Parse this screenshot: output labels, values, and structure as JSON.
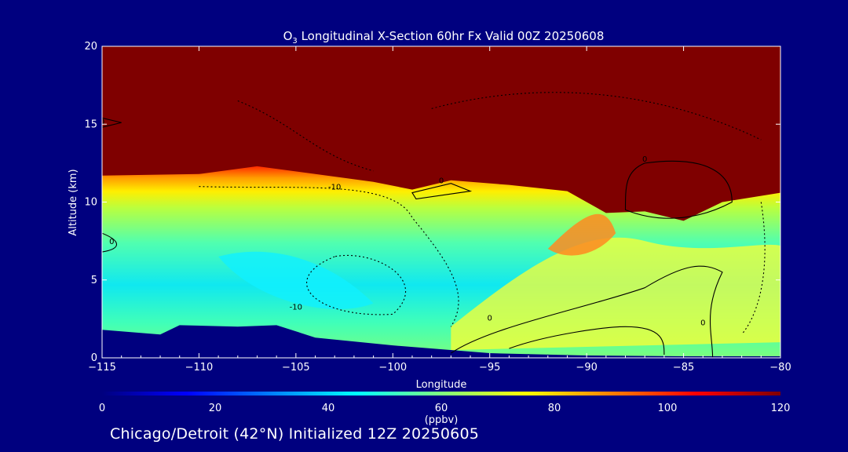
{
  "chart_data": {
    "type": "heatmap",
    "title_prefix": "O",
    "title_sub": "3",
    "title_rest": " Longitudinal X-Section 60hr  Fx Valid 00Z 20250608",
    "xlabel": "Longitude",
    "ylabel": "Altitude (km)",
    "xlim": [
      -115,
      -80
    ],
    "ylim": [
      0,
      20
    ],
    "x_ticks": [
      -115,
      -110,
      -105,
      -100,
      -95,
      -90,
      -85,
      -80
    ],
    "x_tick_labels": [
      "−115",
      "−110",
      "−105",
      "−100",
      "−95",
      "−90",
      "−85",
      "−80"
    ],
    "y_ticks": [
      0,
      5,
      10,
      15,
      20
    ],
    "y_tick_labels": [
      "0",
      "5",
      "10",
      "15",
      "20"
    ],
    "colorbar": {
      "min": 0,
      "max": 120,
      "ticks": [
        0,
        20,
        40,
        60,
        80,
        100,
        120
      ],
      "tick_labels": [
        "0",
        "20",
        "40",
        "60",
        "80",
        "100",
        "120"
      ],
      "unit": "(ppbv)",
      "colors": [
        "#00007f",
        "#0000ff",
        "#0080ff",
        "#00ffff",
        "#80ff80",
        "#ffff00",
        "#ff8000",
        "#ff0000",
        "#7f0000"
      ]
    },
    "terrain": [
      [
        -115,
        1.8
      ],
      [
        -112,
        1.5
      ],
      [
        -111,
        2.1
      ],
      [
        -108,
        2.0
      ],
      [
        -106,
        2.1
      ],
      [
        -104,
        1.3
      ],
      [
        -100,
        0.8
      ],
      [
        -95,
        0.3
      ],
      [
        -90,
        0.15
      ],
      [
        -85,
        0.1
      ],
      [
        -80,
        0.1
      ]
    ],
    "tropopause_km": [
      [
        -115,
        11.7
      ],
      [
        -110,
        11.8
      ],
      [
        -107,
        12.3
      ],
      [
        -104,
        11.8
      ],
      [
        -101,
        11.3
      ],
      [
        -99,
        10.8
      ],
      [
        -97,
        11.4
      ],
      [
        -94,
        11.1
      ],
      [
        -91,
        10.7
      ],
      [
        -89,
        9.3
      ],
      [
        -87,
        9.4
      ],
      [
        -85,
        8.8
      ],
      [
        -83,
        10.0
      ],
      [
        -80,
        10.6
      ]
    ],
    "contour_labels": [
      "-10",
      "-10",
      "0",
      "0",
      "0",
      "0",
      "0",
      "0"
    ]
  },
  "footer": "Chicago/Detroit (42°N) Initialized 12Z 20250605"
}
